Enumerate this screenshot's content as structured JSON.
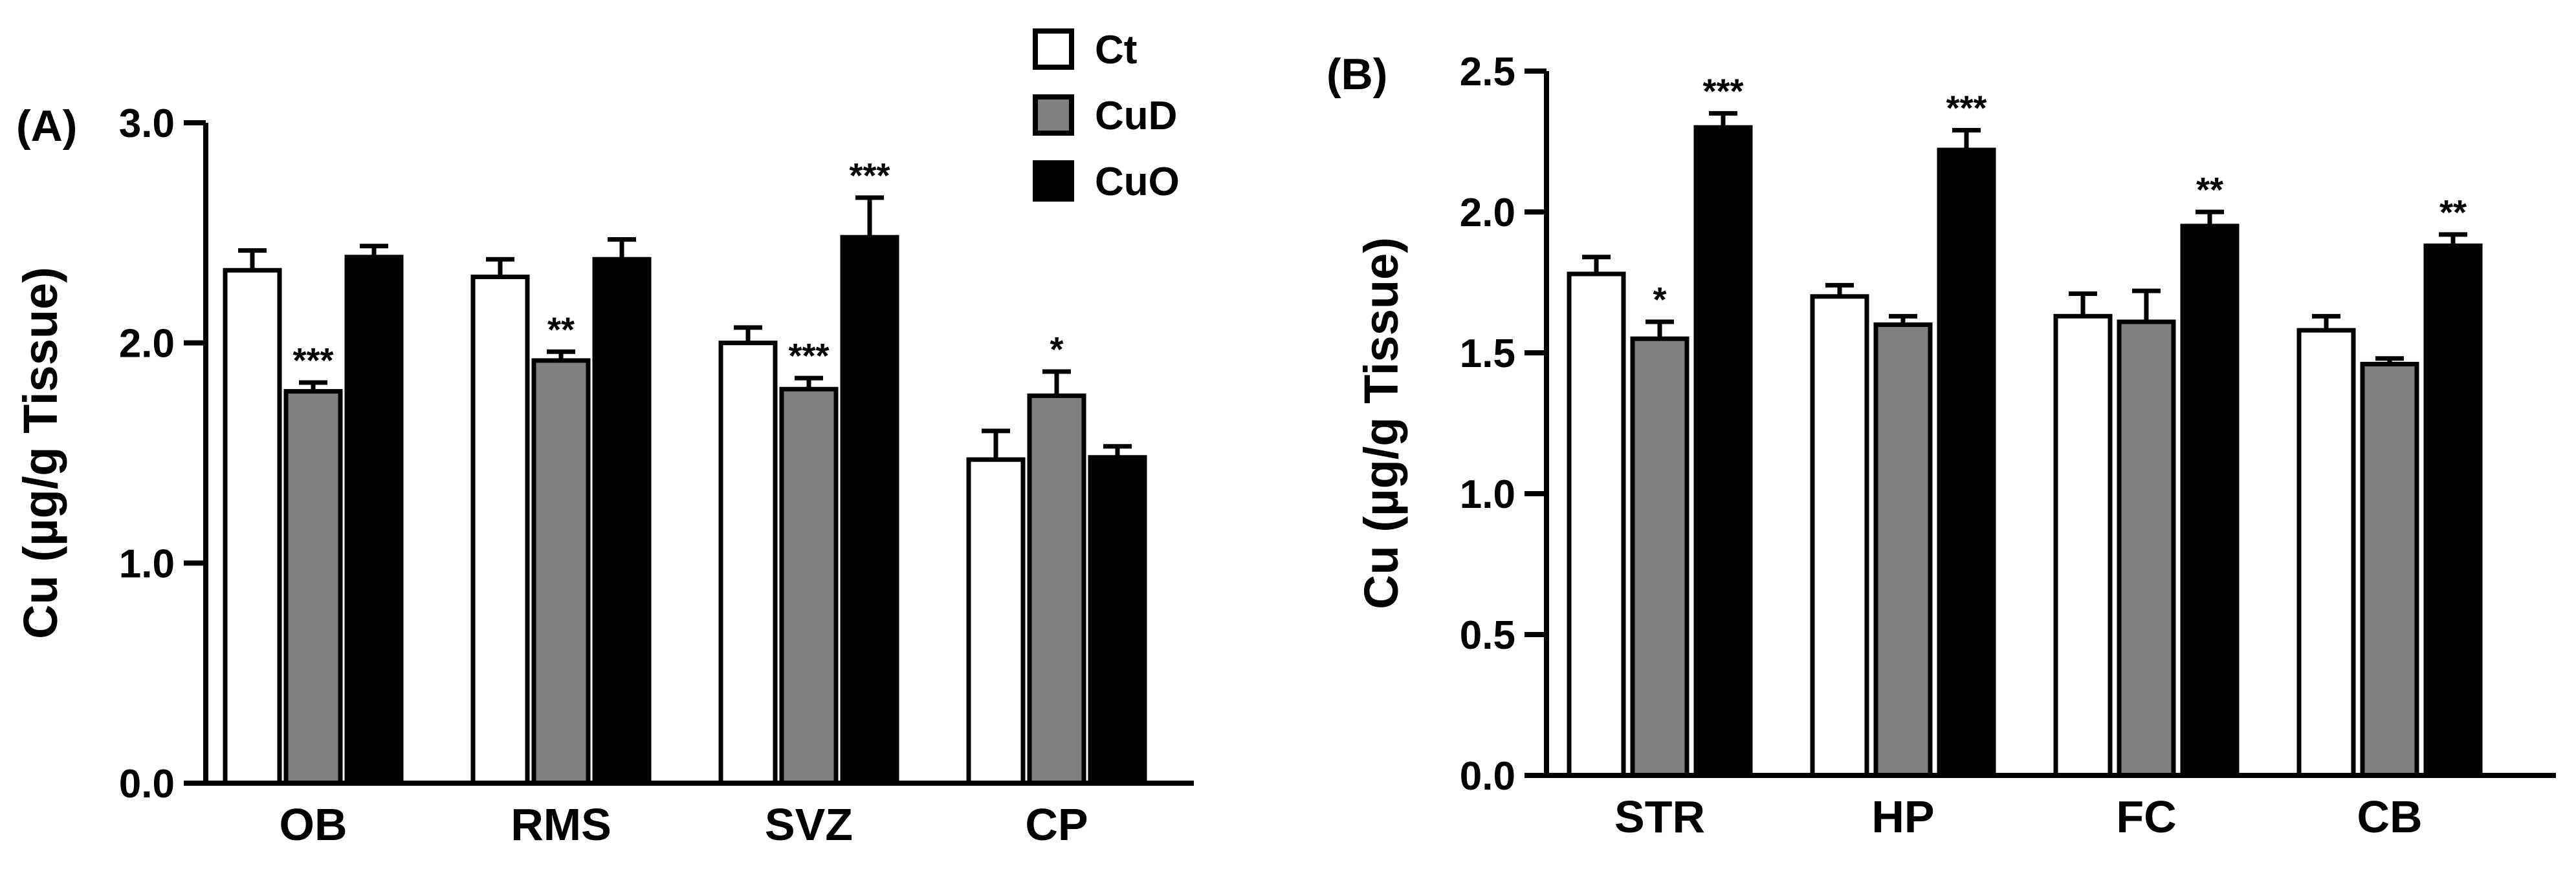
{
  "legend": [
    {
      "label": "Ct",
      "color": "#ffffff"
    },
    {
      "label": "CuD",
      "color": "#808080"
    },
    {
      "label": "CuO",
      "color": "#000000"
    }
  ],
  "chart_data": [
    {
      "type": "bar",
      "panel_label": "(A)",
      "ylabel": "Cu (µg/g Tissue)",
      "ylim": [
        0,
        3.0
      ],
      "yticks": [
        "0.0",
        "1.0",
        "2.0",
        "3.0"
      ],
      "categories": [
        "OB",
        "RMS",
        "SVZ",
        "CP"
      ],
      "series": [
        {
          "name": "Ct",
          "values": [
            2.33,
            2.3,
            2.0,
            1.47
          ],
          "errors": [
            0.09,
            0.08,
            0.07,
            0.13
          ],
          "sig": [
            "",
            "",
            "",
            ""
          ]
        },
        {
          "name": "CuD",
          "values": [
            1.78,
            1.92,
            1.79,
            1.76
          ],
          "errors": [
            0.04,
            0.04,
            0.05,
            0.11
          ],
          "sig": [
            "***",
            "**",
            "***",
            "*"
          ]
        },
        {
          "name": "CuO",
          "values": [
            2.39,
            2.38,
            2.48,
            1.48
          ],
          "errors": [
            0.05,
            0.09,
            0.18,
            0.05
          ],
          "sig": [
            "",
            "",
            "***",
            ""
          ]
        }
      ]
    },
    {
      "type": "bar",
      "panel_label": "(B)",
      "ylabel": "Cu (µg/g Tissue)",
      "ylim": [
        0,
        2.5
      ],
      "yticks": [
        "0.0",
        "0.5",
        "1.0",
        "1.5",
        "2.0",
        "2.5"
      ],
      "categories": [
        "STR",
        "HP",
        "FC",
        "CB"
      ],
      "series": [
        {
          "name": "Ct",
          "values": [
            1.78,
            1.7,
            1.63,
            1.58
          ],
          "errors": [
            0.06,
            0.04,
            0.08,
            0.05
          ],
          "sig": [
            "",
            "",
            "",
            ""
          ]
        },
        {
          "name": "CuD",
          "values": [
            1.55,
            1.6,
            1.61,
            1.46
          ],
          "errors": [
            0.06,
            0.03,
            0.11,
            0.02
          ],
          "sig": [
            "*",
            "",
            "",
            ""
          ]
        },
        {
          "name": "CuO",
          "values": [
            2.3,
            2.22,
            1.95,
            1.88
          ],
          "errors": [
            0.05,
            0.07,
            0.05,
            0.04
          ],
          "sig": [
            "***",
            "***",
            "**",
            "**"
          ]
        }
      ]
    }
  ]
}
